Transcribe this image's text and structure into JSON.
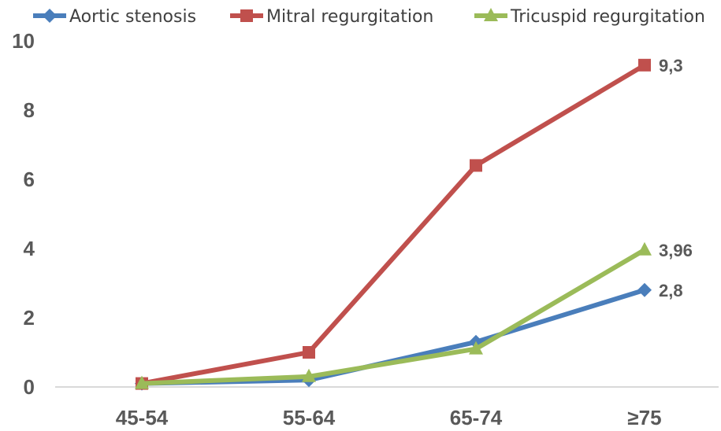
{
  "chart_data": {
    "type": "line",
    "categories": [
      "45-54",
      "55-64",
      "65-74",
      "≥75"
    ],
    "series": [
      {
        "name": "Aortic stenosis",
        "values": [
          0.1,
          0.2,
          1.3,
          2.8
        ],
        "color": "#4a7ebb",
        "marker": "diamond",
        "end_label": "2,8"
      },
      {
        "name": "Mitral regurgitation",
        "values": [
          0.1,
          1.0,
          6.4,
          9.3
        ],
        "color": "#c0504d",
        "marker": "square",
        "end_label": "9,3"
      },
      {
        "name": "Tricuspid regurgitation",
        "values": [
          0.1,
          0.3,
          1.1,
          3.96
        ],
        "color": "#9bbb59",
        "marker": "triangle",
        "end_label": "3,96"
      }
    ],
    "y_ticks": [
      "0",
      "2",
      "4",
      "6",
      "8",
      "10"
    ],
    "ylim": [
      0,
      10
    ],
    "title": "",
    "xlabel": "",
    "ylabel": "",
    "legend_position": "top",
    "grid": false
  }
}
